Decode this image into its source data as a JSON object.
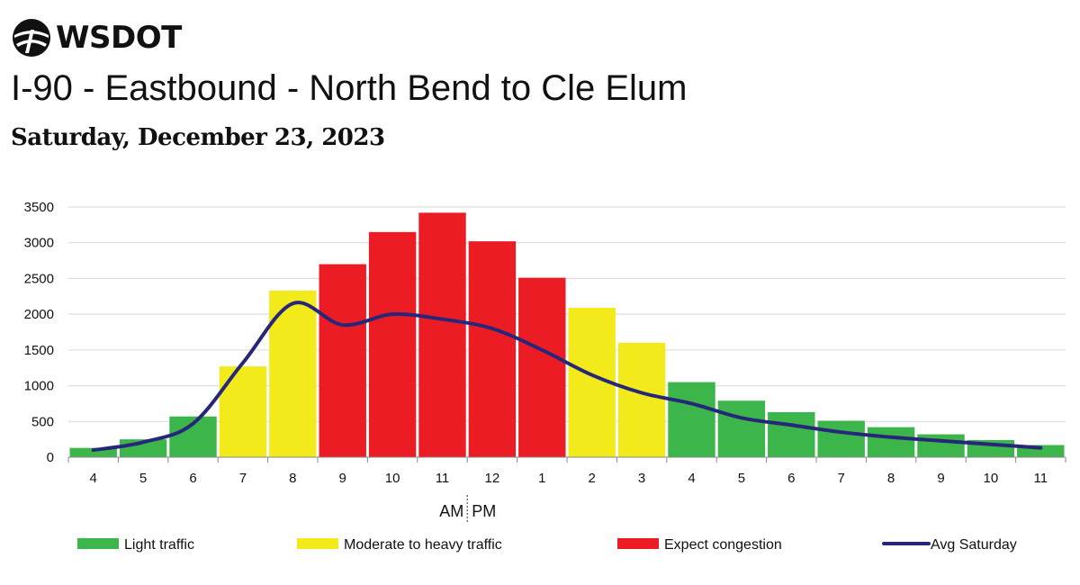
{
  "header": {
    "logo_text": "WSDOT",
    "title": "I-90 - Eastbound - North Bend to Cle Elum",
    "subtitle": "Saturday, December 23, 2023"
  },
  "colors": {
    "light": "#3cb54a",
    "moderate": "#f2ea1b",
    "congestion": "#ec1c24",
    "avg_line": "#27277a"
  },
  "chart_data": {
    "type": "bar",
    "categories": [
      "4",
      "5",
      "6",
      "7",
      "8",
      "9",
      "10",
      "11",
      "12",
      "1",
      "2",
      "3",
      "4",
      "5",
      "6",
      "7",
      "8",
      "9",
      "10",
      "11"
    ],
    "series": [
      {
        "values": [
          130,
          250,
          570,
          1270,
          2330,
          2700,
          3150,
          3420,
          3020,
          2510,
          2090,
          1600,
          1050,
          790,
          630,
          510,
          420,
          320,
          240,
          170
        ],
        "levels": [
          "light",
          "light",
          "light",
          "moderate",
          "moderate",
          "congestion",
          "congestion",
          "congestion",
          "congestion",
          "congestion",
          "moderate",
          "moderate",
          "light",
          "light",
          "light",
          "light",
          "light",
          "light",
          "light",
          "light"
        ]
      },
      {
        "name": "Avg Saturday",
        "type": "line",
        "values": [
          100,
          210,
          470,
          1320,
          2150,
          1850,
          2000,
          1930,
          1800,
          1500,
          1150,
          900,
          750,
          550,
          450,
          350,
          280,
          230,
          180,
          130
        ]
      }
    ],
    "y_ticks": [
      "0",
      "500",
      "1000",
      "1500",
      "2000",
      "2500",
      "3000",
      "3500"
    ],
    "ylim": [
      0,
      3500
    ],
    "grid": true,
    "am_label": "AM",
    "pm_label": "PM",
    "legend": [
      {
        "label": "Light traffic",
        "level": "light"
      },
      {
        "label": "Moderate to heavy traffic",
        "level": "moderate"
      },
      {
        "label": "Expect congestion",
        "level": "congestion"
      },
      {
        "label": "Avg Saturday",
        "level": "avg_line"
      }
    ]
  }
}
